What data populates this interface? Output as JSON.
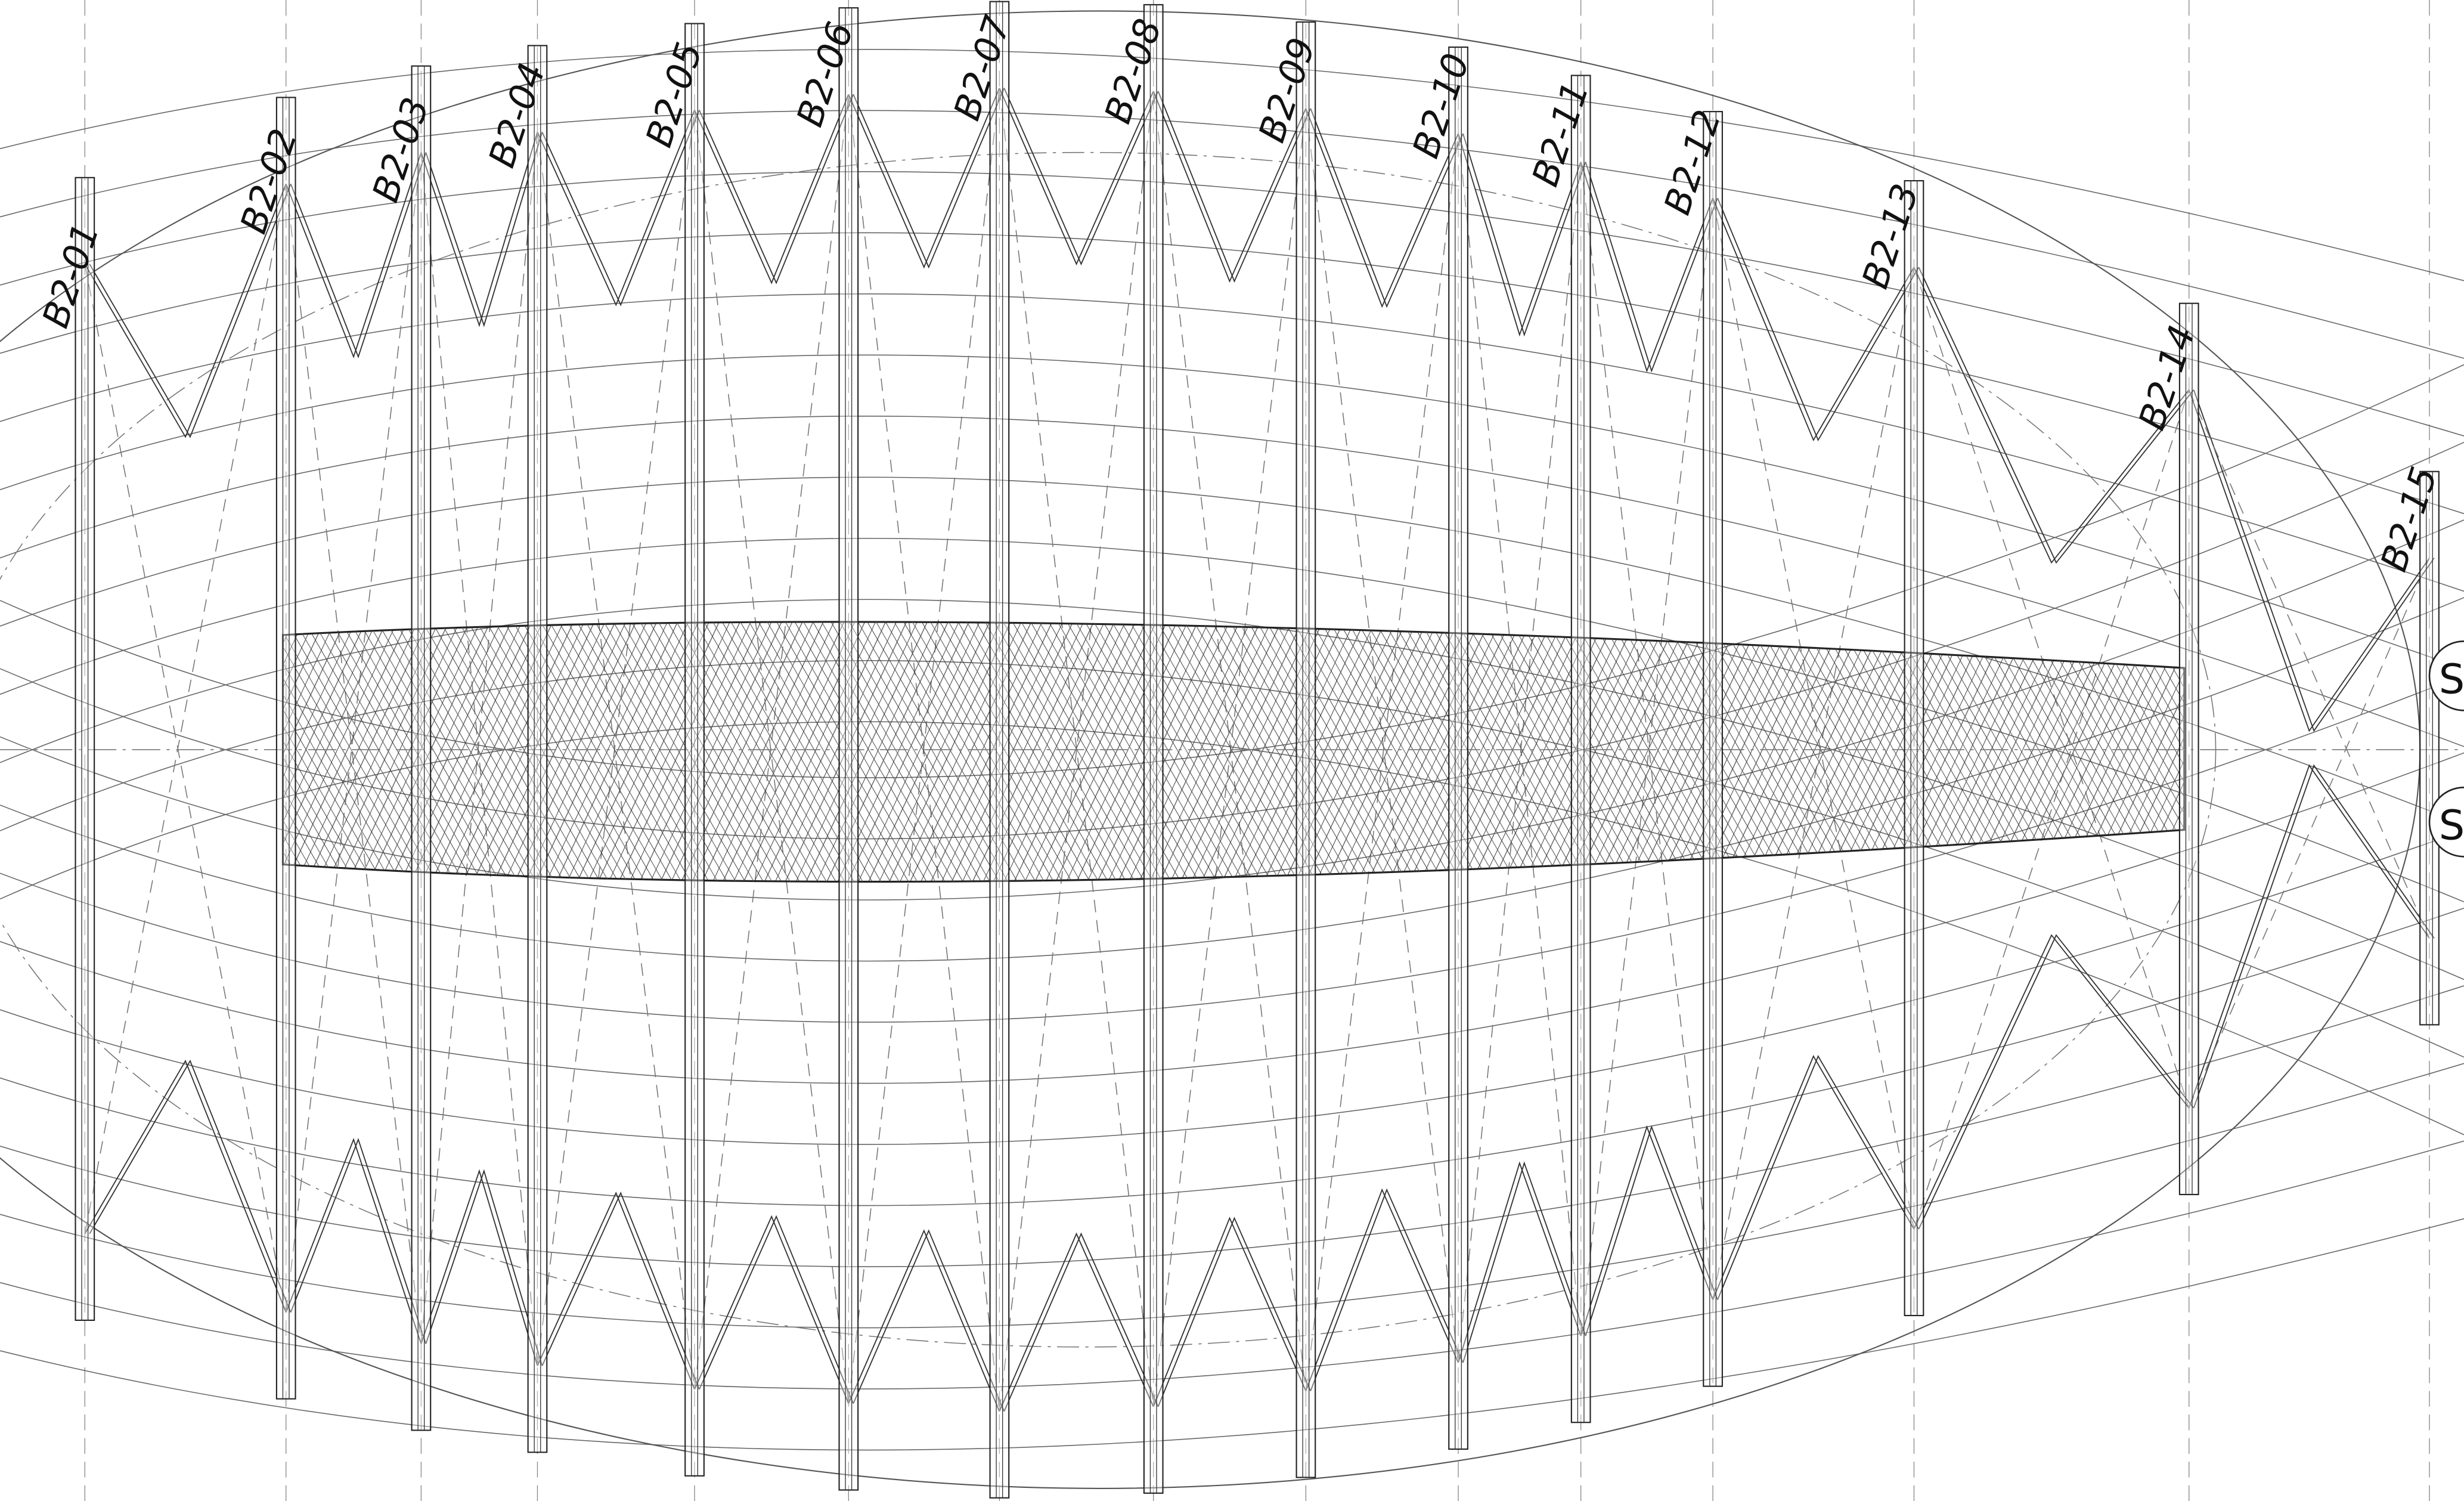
{
  "drawing": {
    "frame_labels": [
      "B2-01",
      "B2-02",
      "B2-03",
      "B2-04",
      "B2-05",
      "B2-06",
      "B2-07",
      "B2-08",
      "B2-09",
      "B2-10",
      "B2-11",
      "B2-12",
      "B2-13",
      "B2-14",
      "B2-15"
    ],
    "edge_marks": [
      "S",
      "S"
    ],
    "colors": {
      "line": "#222222",
      "light_line": "#777777",
      "background": "#ffffff"
    }
  }
}
